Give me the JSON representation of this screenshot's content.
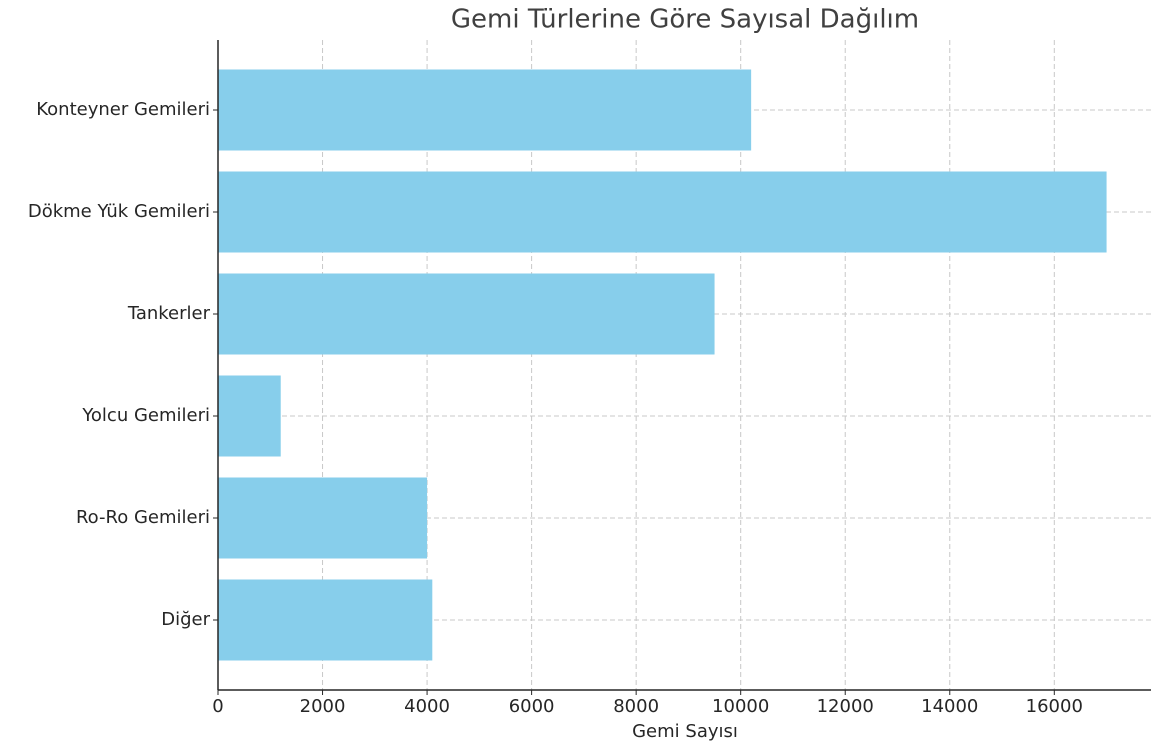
{
  "chart_data": {
    "type": "barh",
    "title": "Gemi Türlerine Göre Sayısal Dağılım",
    "x_label": "Gemi Sayısı",
    "categories": [
      "Konteyner Gemileri",
      "Dökme Yük Gemileri",
      "Tankerler",
      "Yolcu Gemileri",
      "Ro-Ro Gemileri",
      "Diğer"
    ],
    "values": [
      10200,
      17000,
      9500,
      1200,
      4000,
      4100
    ],
    "color": "#87ceeb",
    "xlim": [
      0,
      17850
    ],
    "xticks": [
      0,
      2000,
      4000,
      6000,
      8000,
      10000,
      12000,
      14000,
      16000
    ],
    "grid": true
  }
}
